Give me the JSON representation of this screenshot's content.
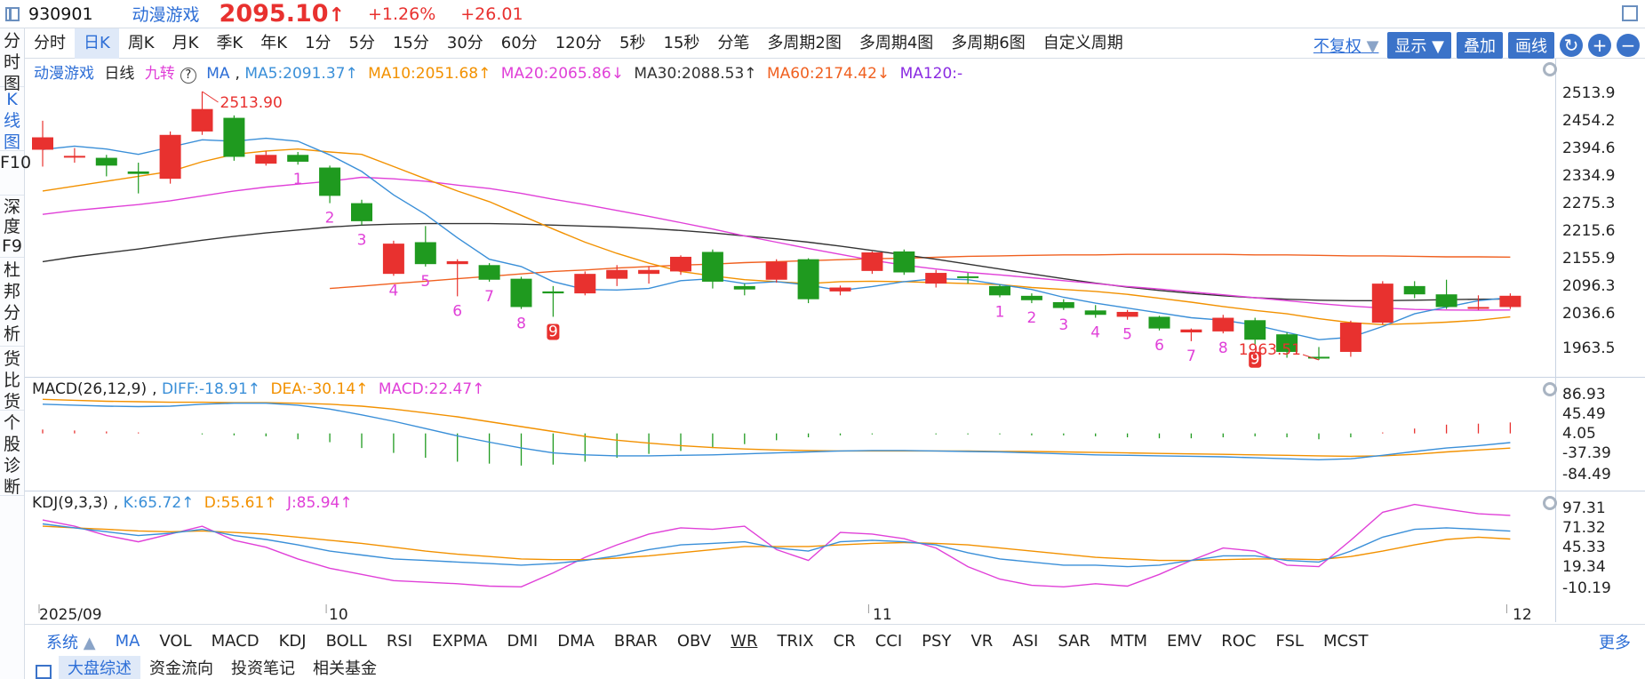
{
  "header": {
    "code": "930901",
    "name": "动漫游戏",
    "price": "2095.10",
    "arrow": "↑",
    "pct": "+1.26%",
    "chg": "+26.01"
  },
  "left_rail": [
    "分时图",
    "K线图",
    "F10",
    "深度F9",
    "杜邦分析",
    "货比货",
    "个股诊断"
  ],
  "period_tabs": [
    "分时",
    "日K",
    "周K",
    "月K",
    "季K",
    "年K",
    "1分",
    "5分",
    "15分",
    "30分",
    "60分",
    "120分",
    "5秒",
    "15秒",
    "分笔",
    "多周期2图",
    "多周期4图",
    "多周期6图",
    "自定义周期"
  ],
  "active_period": "日K",
  "controls": {
    "fuquan": "不复权",
    "display": "显示",
    "overlay": "叠加",
    "draw": "画线"
  },
  "ma_legend": {
    "name": "动漫游戏",
    "period": "日线",
    "nine": "九转",
    "ma": "MA",
    "ma5": "MA5:2091.37↑",
    "ma10": "MA10:2051.68↑",
    "ma20": "MA20:2065.86↓",
    "ma30": "MA30:2088.53↑",
    "ma60": "MA60:2174.42↓",
    "ma120": "MA120:-"
  },
  "macd_legend": {
    "title": "MACD(26,12,9)",
    "diff": "DIFF:-18.91↑",
    "dea": "DEA:-30.14↑",
    "macd": "MACD:22.47↑"
  },
  "kdj_legend": {
    "title": "KDJ(9,3,3)",
    "k": "K:65.72↑",
    "d": "D:55.61↑",
    "j": "J:85.94↑"
  },
  "price_axis": [
    "2513.9",
    "2454.2",
    "2394.6",
    "2334.9",
    "2275.3",
    "2215.6",
    "2155.9",
    "2096.3",
    "2036.6",
    "1963.5"
  ],
  "macd_axis": [
    "86.93",
    "45.49",
    "4.05",
    "-37.39",
    "-84.49"
  ],
  "kdj_axis": [
    "97.31",
    "71.32",
    "45.33",
    "19.34",
    "-10.19"
  ],
  "x_axis": [
    {
      "label": "2025/09",
      "i": 0
    },
    {
      "label": "10",
      "i": 9
    },
    {
      "label": "11",
      "i": 26
    },
    {
      "label": "12",
      "i": 46
    }
  ],
  "annotations": {
    "high": "2513.90",
    "low": "1963.51"
  },
  "indicator_tabs": [
    "MA",
    "VOL",
    "MACD",
    "KDJ",
    "BOLL",
    "RSI",
    "EXPMA",
    "DMI",
    "DMA",
    "BRAR",
    "OBV",
    "WR",
    "TRIX",
    "CR",
    "CCI",
    "PSY",
    "VR",
    "ASI",
    "SAR",
    "MTM",
    "EMV",
    "ROC",
    "FSL",
    "MCST"
  ],
  "active_indicator": "MA",
  "system_label": "系统",
  "more_label": "更多",
  "bottom_tabs": [
    "大盘综述",
    "资金流向",
    "投资笔记",
    "相关基金"
  ],
  "colors": {
    "up": "#e8312f",
    "down": "#1f9a1f",
    "ma5": "#3a8fd8",
    "ma10": "#f29100",
    "ma20": "#e040d8",
    "ma30": "#333333",
    "ma60": "#f06020",
    "ma120": "#8a2be2",
    "nine": "#e040d8"
  },
  "chart_data": {
    "type": "candlestick",
    "price_range": [
      1963.5,
      2513.9
    ],
    "candles": [
      {
        "o": 2394.6,
        "c": 2420,
        "h": 2454,
        "l": 2360
      },
      {
        "o": 2380,
        "c": 2382,
        "h": 2398,
        "l": 2368
      },
      {
        "o": 2378,
        "c": 2362,
        "h": 2384,
        "l": 2340
      },
      {
        "o": 2350,
        "c": 2345,
        "h": 2368,
        "l": 2305
      },
      {
        "o": 2335,
        "c": 2425,
        "h": 2432,
        "l": 2325
      },
      {
        "o": 2432,
        "c": 2478,
        "h": 2513.9,
        "l": 2425
      },
      {
        "o": 2460,
        "c": 2380,
        "h": 2465,
        "l": 2372
      },
      {
        "o": 2366,
        "c": 2384,
        "h": 2392,
        "l": 2362
      },
      {
        "o": 2384,
        "c": 2370,
        "h": 2390,
        "l": 2364
      },
      {
        "o": 2358,
        "c": 2300,
        "h": 2362,
        "l": 2285
      },
      {
        "o": 2285,
        "c": 2248,
        "h": 2292,
        "l": 2240
      },
      {
        "o": 2140,
        "c": 2202,
        "h": 2208,
        "l": 2136
      },
      {
        "o": 2205,
        "c": 2160,
        "h": 2238,
        "l": 2155
      },
      {
        "o": 2160,
        "c": 2166,
        "h": 2170,
        "l": 2094
      },
      {
        "o": 2158,
        "c": 2128,
        "h": 2162,
        "l": 2124
      },
      {
        "o": 2130,
        "c": 2072,
        "h": 2134,
        "l": 2068
      },
      {
        "o": 2104,
        "c": 2100,
        "h": 2115,
        "l": 2052
      },
      {
        "o": 2100,
        "c": 2140,
        "h": 2145,
        "l": 2096
      },
      {
        "o": 2130,
        "c": 2148,
        "h": 2158,
        "l": 2115
      },
      {
        "o": 2140,
        "c": 2148,
        "h": 2155,
        "l": 2120
      },
      {
        "o": 2145,
        "c": 2175,
        "h": 2178,
        "l": 2138
      },
      {
        "o": 2185,
        "c": 2124,
        "h": 2190,
        "l": 2110
      },
      {
        "o": 2115,
        "c": 2108,
        "h": 2120,
        "l": 2096
      },
      {
        "o": 2128,
        "c": 2165,
        "h": 2170,
        "l": 2122
      },
      {
        "o": 2170,
        "c": 2088,
        "h": 2172,
        "l": 2080
      },
      {
        "o": 2104,
        "c": 2112,
        "h": 2116,
        "l": 2096
      },
      {
        "o": 2146,
        "c": 2184,
        "h": 2186,
        "l": 2140
      },
      {
        "o": 2186,
        "c": 2143,
        "h": 2190,
        "l": 2138
      },
      {
        "o": 2120,
        "c": 2142,
        "h": 2148,
        "l": 2112
      },
      {
        "o": 2135,
        "c": 2132,
        "h": 2142,
        "l": 2120
      },
      {
        "o": 2115,
        "c": 2096,
        "h": 2118,
        "l": 2092
      },
      {
        "o": 2095,
        "c": 2086,
        "h": 2100,
        "l": 2080
      },
      {
        "o": 2082,
        "c": 2070,
        "h": 2088,
        "l": 2066
      },
      {
        "o": 2065,
        "c": 2056,
        "h": 2076,
        "l": 2050
      },
      {
        "o": 2052,
        "c": 2062,
        "h": 2066,
        "l": 2046
      },
      {
        "o": 2052,
        "c": 2028,
        "h": 2054,
        "l": 2024
      },
      {
        "o": 2020,
        "c": 2026,
        "h": 2028,
        "l": 2002
      },
      {
        "o": 2022,
        "c": 2050,
        "h": 2056,
        "l": 2018
      },
      {
        "o": 2045,
        "c": 2005,
        "h": 2050,
        "l": 1995
      },
      {
        "o": 2016,
        "c": 1980,
        "h": 2020,
        "l": 1968
      },
      {
        "o": 1970,
        "c": 1968,
        "h": 1990,
        "l": 1963.5
      },
      {
        "o": 1980,
        "c": 2040,
        "h": 2044,
        "l": 1970
      },
      {
        "o": 2040,
        "c": 2120,
        "h": 2125,
        "l": 2036
      },
      {
        "o": 2115,
        "c": 2098,
        "h": 2125,
        "l": 2090
      },
      {
        "o": 2098,
        "c": 2072,
        "h": 2128,
        "l": 2068
      },
      {
        "o": 2070,
        "c": 2072,
        "h": 2096,
        "l": 2066
      },
      {
        "o": 2072,
        "c": 2095.1,
        "h": 2100,
        "l": 2068
      }
    ],
    "ma5": [
      2395,
      2402,
      2396,
      2385,
      2400,
      2415,
      2412,
      2418,
      2412,
      2384,
      2350,
      2302,
      2262,
      2214,
      2170,
      2155,
      2124,
      2108,
      2107,
      2110,
      2126,
      2130,
      2120,
      2124,
      2117,
      2106,
      2114,
      2124,
      2130,
      2128,
      2118,
      2108,
      2092,
      2080,
      2070,
      2060,
      2050,
      2045,
      2035,
      2020,
      2005,
      2010,
      2032,
      2058,
      2072,
      2085,
      2091.37
    ],
    "ma10": [
      2310,
      2320,
      2330,
      2340,
      2350,
      2370,
      2385,
      2392,
      2396,
      2390,
      2385,
      2360,
      2335,
      2310,
      2288,
      2260,
      2232,
      2205,
      2182,
      2162,
      2145,
      2136,
      2128,
      2124,
      2120,
      2124,
      2125,
      2124,
      2122,
      2120,
      2118,
      2112,
      2108,
      2104,
      2098,
      2090,
      2082,
      2073,
      2065,
      2058,
      2048,
      2040,
      2036,
      2038,
      2041,
      2045,
      2051.68
    ],
    "ma20": [
      2262,
      2270,
      2276,
      2282,
      2290,
      2300,
      2310,
      2318,
      2324,
      2330,
      2338,
      2335,
      2330,
      2322,
      2315,
      2305,
      2293,
      2282,
      2270,
      2258,
      2245,
      2232,
      2218,
      2205,
      2192,
      2180,
      2168,
      2158,
      2150,
      2143,
      2138,
      2132,
      2126,
      2120,
      2114,
      2109,
      2103,
      2097,
      2091,
      2085,
      2079,
      2074,
      2070,
      2067,
      2066,
      2065.5,
      2065.86
    ],
    "ma30": [
      2165,
      2175,
      2183,
      2191,
      2200,
      2209,
      2217,
      2224,
      2230,
      2236,
      2240,
      2242,
      2243,
      2243,
      2243,
      2242,
      2240,
      2238,
      2236,
      2233,
      2229,
      2224,
      2218,
      2212,
      2205,
      2197,
      2188,
      2179,
      2170,
      2160,
      2150,
      2140,
      2130,
      2121,
      2113,
      2106,
      2100,
      2095,
      2091,
      2088,
      2086,
      2085,
      2085,
      2086,
      2087,
      2088,
      2088.53
    ],
    "ma60": [
      null,
      null,
      null,
      null,
      null,
      null,
      null,
      null,
      null,
      2110,
      2115,
      2120,
      2125,
      2130,
      2135,
      2140,
      2145,
      2148,
      2152,
      2155,
      2158,
      2160,
      2163,
      2165,
      2167,
      2169,
      2171,
      2172,
      2174,
      2176,
      2177,
      2178,
      2179,
      2179,
      2180,
      2180,
      2180,
      2180,
      2179,
      2179,
      2178,
      2177,
      2177,
      2176,
      2175,
      2175,
      2174.42
    ],
    "nine_markers": [
      {
        "i": 8,
        "label": "1"
      },
      {
        "i": 9,
        "label": "2"
      },
      {
        "i": 10,
        "label": "3"
      },
      {
        "i": 11,
        "label": "4"
      },
      {
        "i": 12,
        "label": "5"
      },
      {
        "i": 13,
        "label": "6"
      },
      {
        "i": 14,
        "label": "7"
      },
      {
        "i": 15,
        "label": "8"
      },
      {
        "i": 16,
        "label": "9",
        "boxed": true
      },
      {
        "i": 30,
        "label": "1"
      },
      {
        "i": 31,
        "label": "2"
      },
      {
        "i": 32,
        "label": "3"
      },
      {
        "i": 33,
        "label": "4"
      },
      {
        "i": 34,
        "label": "5"
      },
      {
        "i": 35,
        "label": "6"
      },
      {
        "i": 36,
        "label": "7"
      },
      {
        "i": 37,
        "label": "8"
      },
      {
        "i": 38,
        "label": "9",
        "boxed": true
      }
    ],
    "macd": {
      "range": [
        -84.49,
        86.93
      ],
      "diff": [
        60,
        58,
        56,
        55,
        56,
        60,
        62,
        62,
        58,
        50,
        38,
        25,
        10,
        -5,
        -18,
        -30,
        -40,
        -44,
        -46,
        -46,
        -45,
        -44,
        -42,
        -40,
        -38,
        -36,
        -35,
        -35,
        -36,
        -37,
        -38,
        -40,
        -42,
        -44,
        -45,
        -46,
        -47,
        -48,
        -50,
        -52,
        -54,
        -52,
        -45,
        -37,
        -30,
        -25,
        -18.91
      ],
      "dea": [
        70,
        68,
        66,
        65,
        64,
        64,
        63,
        63,
        62,
        60,
        56,
        50,
        42,
        34,
        24,
        14,
        4,
        -6,
        -14,
        -20,
        -25,
        -29,
        -32,
        -34,
        -35,
        -36,
        -36,
        -36,
        -36,
        -36,
        -37,
        -37,
        -38,
        -39,
        -40,
        -41,
        -42,
        -43,
        -44,
        -45,
        -46,
        -47,
        -46,
        -43,
        -38,
        -34,
        -30.14
      ],
      "hist": [
        8,
        6,
        4,
        2,
        0,
        -2,
        -4,
        -6,
        -12,
        -18,
        -30,
        -40,
        -50,
        -58,
        -62,
        -66,
        -64,
        -58,
        -50,
        -42,
        -36,
        -30,
        -22,
        -14,
        -8,
        -4,
        -2,
        0,
        -2,
        -2,
        -2,
        -4,
        -4,
        -6,
        -8,
        -10,
        -10,
        -8,
        -6,
        -8,
        -12,
        -8,
        2,
        10,
        18,
        20,
        22.47
      ]
    },
    "kdj": {
      "range": [
        -10.19,
        97.31
      ],
      "k": [
        75,
        70,
        65,
        60,
        63,
        68,
        60,
        55,
        48,
        40,
        35,
        30,
        28,
        26,
        24,
        22,
        24,
        28,
        34,
        42,
        48,
        50,
        52,
        44,
        40,
        52,
        54,
        52,
        48,
        38,
        30,
        26,
        22,
        22,
        20,
        22,
        28,
        34,
        34,
        28,
        26,
        40,
        58,
        68,
        70,
        68,
        65.72
      ],
      "d": [
        72,
        70,
        68,
        66,
        65,
        66,
        64,
        62,
        58,
        54,
        50,
        45,
        40,
        36,
        33,
        30,
        29,
        29,
        31,
        34,
        38,
        42,
        46,
        46,
        46,
        48,
        50,
        51,
        50,
        48,
        44,
        40,
        36,
        32,
        30,
        28,
        28,
        29,
        30,
        30,
        29,
        33,
        40,
        48,
        55,
        58,
        55.61
      ],
      "j": [
        80,
        72,
        60,
        52,
        62,
        72,
        54,
        45,
        30,
        18,
        10,
        2,
        0,
        -2,
        -5,
        -6,
        12,
        32,
        48,
        62,
        70,
        68,
        72,
        42,
        28,
        64,
        62,
        56,
        44,
        20,
        4,
        -4,
        -6,
        -2,
        -5,
        10,
        28,
        44,
        40,
        22,
        20,
        54,
        90,
        100,
        94,
        88,
        85.94
      ]
    }
  }
}
